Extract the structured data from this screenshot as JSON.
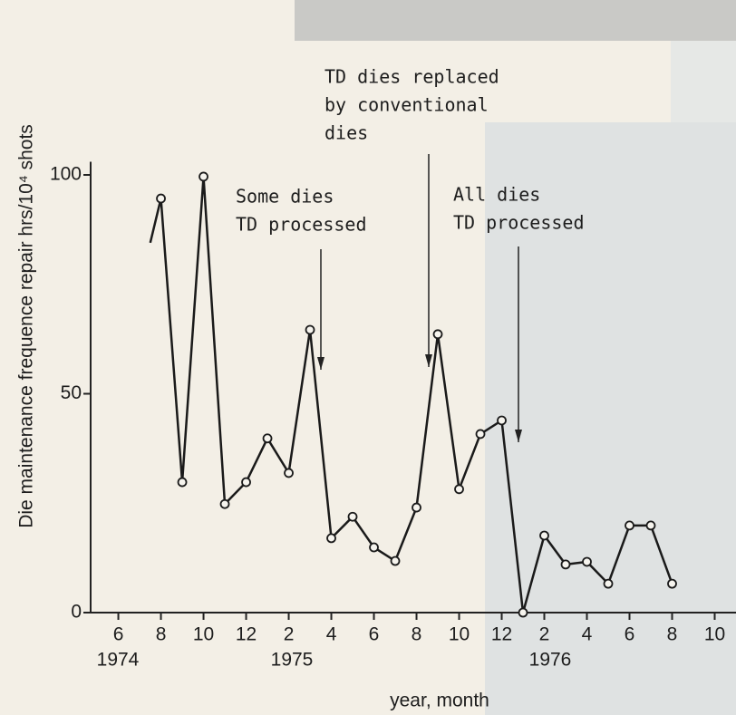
{
  "chart_data": {
    "type": "line",
    "ylabel": "Die maintenance frequence   repair hrs/10⁴ shots",
    "xlabel": "year, month",
    "x": [
      7.5,
      8,
      9,
      10,
      11,
      12,
      13,
      14,
      15,
      16,
      17,
      18,
      19,
      20,
      21,
      22,
      23,
      24,
      25,
      26,
      27,
      28,
      29,
      30,
      31,
      32
    ],
    "series": [
      {
        "color": "#1a1a1a",
        "values": [
          84.5,
          94.6,
          29.8,
          99.6,
          24.8,
          29.8,
          39.8,
          31.9,
          64.6,
          17.0,
          21.9,
          14.9,
          11.8,
          24.0,
          63.6,
          28.2,
          40.8,
          43.9,
          0,
          17.6,
          11.0,
          11.6,
          6.6,
          19.9,
          19.9,
          6.6
        ]
      }
    ],
    "xlim": [
      4.7,
      35
    ],
    "ylim": [
      0,
      103
    ],
    "xticks": [
      6,
      8,
      10,
      12,
      {
        "value": 14,
        "label": "2"
      },
      {
        "value": 16,
        "label": "4"
      },
      {
        "value": 18,
        "label": "6"
      },
      {
        "value": 20,
        "label": "8"
      },
      {
        "value": 22,
        "label": "10"
      },
      {
        "value": 24,
        "label": "12"
      },
      {
        "value": 26,
        "label": "2"
      },
      {
        "value": 28,
        "label": "4"
      },
      {
        "value": 30,
        "label": "6"
      },
      {
        "value": 32,
        "label": "8"
      },
      {
        "value": 34,
        "label": "10"
      }
    ],
    "yticks": [
      0,
      50,
      100
    ],
    "year_labels": [
      "1974",
      "1975",
      "1976"
    ],
    "annotations": [
      [
        "Some dies",
        "TD processed"
      ],
      [
        "TD dies replaced",
        "by conventional",
        "dies"
      ],
      [
        "All dies",
        "TD processed"
      ]
    ]
  }
}
